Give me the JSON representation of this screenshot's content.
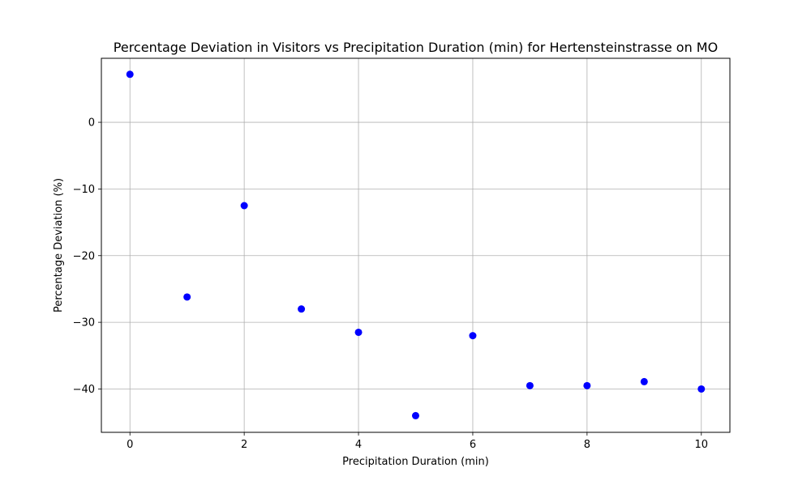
{
  "chart_data": {
    "type": "scatter",
    "title": "Percentage Deviation in Visitors vs Precipitation Duration (min) for Hertensteinstrasse on MO",
    "xlabel": "Precipitation Duration (min)",
    "ylabel": "Percentage Deviation (%)",
    "x": [
      0,
      1,
      2,
      3,
      4,
      5,
      6,
      7,
      8,
      9,
      10
    ],
    "y": [
      7.2,
      -26.2,
      -12.5,
      -28.0,
      -31.5,
      -44.0,
      -32.0,
      -39.5,
      -39.5,
      -38.9,
      -40.0
    ],
    "xlim": [
      -0.5,
      10.5
    ],
    "ylim": [
      -46.5,
      9.6
    ],
    "xticks": [
      0,
      2,
      4,
      6,
      8,
      10
    ],
    "yticks": [
      0,
      -10,
      -20,
      -30,
      -40
    ],
    "xtick_labels": [
      "0",
      "2",
      "4",
      "6",
      "8",
      "10"
    ],
    "ytick_labels": [
      "0",
      "−10",
      "−20",
      "−30",
      "−40"
    ],
    "grid": true,
    "legend": "none",
    "marker_color": "#0000ff",
    "grid_color": "#b0b0b0"
  }
}
